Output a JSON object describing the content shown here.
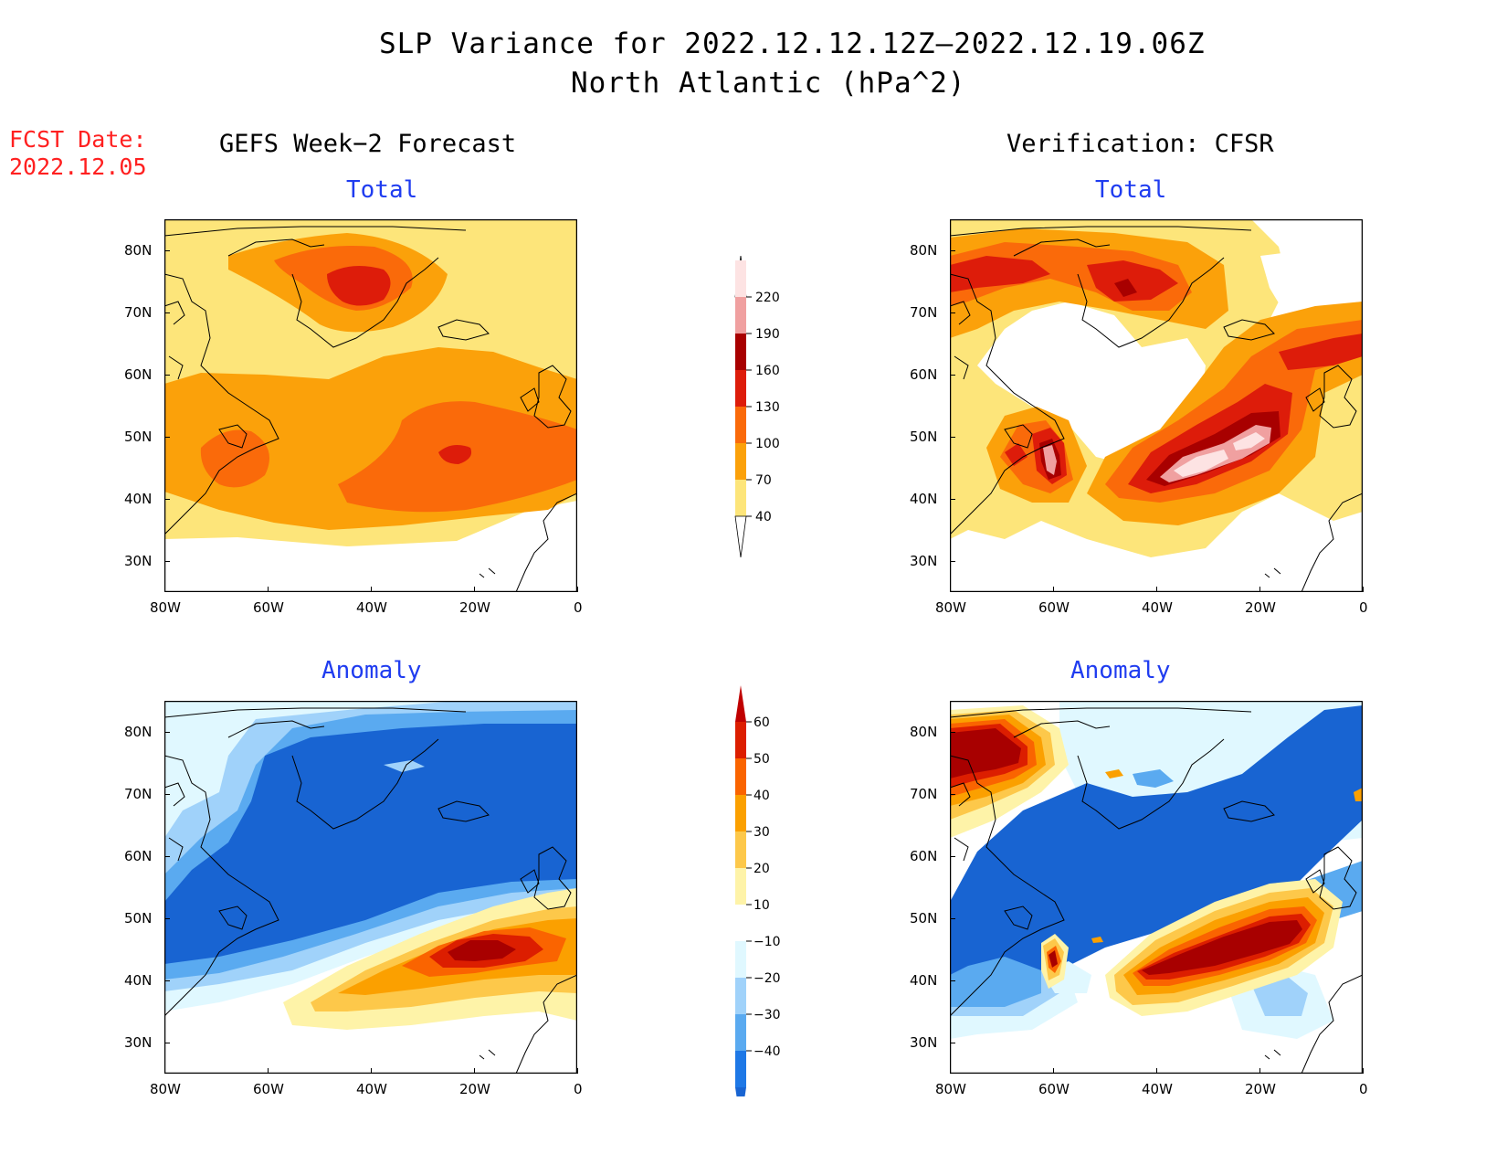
{
  "title_line1": "SLP Variance for 2022.12.12.12Z–2022.12.19.06Z",
  "title_line2": "North Atlantic (hPa^2)",
  "fcst_label": "FCST Date:",
  "fcst_date": "2022.12.05",
  "left_header": "GEFS Week−2 Forecast",
  "right_header": "Verification: CFSR",
  "panels": [
    {
      "id": "gefs-total",
      "title": "Total"
    },
    {
      "id": "cfsr-total",
      "title": "Total"
    },
    {
      "id": "gefs-anomaly",
      "title": "Anomaly"
    },
    {
      "id": "cfsr-anomaly",
      "title": "Anomaly"
    }
  ],
  "axes": {
    "x_ticks": [
      "80W",
      "60W",
      "40W",
      "20W",
      "0"
    ],
    "y_ticks": [
      "80N",
      "70N",
      "60N",
      "50N",
      "40N",
      "30N"
    ],
    "lon_range": [
      -80,
      0
    ],
    "lat_range": [
      25,
      85
    ]
  },
  "total_colorbar": {
    "labels": [
      "220",
      "190",
      "160",
      "130",
      "100",
      "70",
      "40"
    ],
    "colors": [
      "#fde3e3",
      "#f0a0a0",
      "#a80000",
      "#dd1c0a",
      "#fa6a0a",
      "#fba10a",
      "#fde57a"
    ],
    "bottom_color": "#ffffff"
  },
  "anomaly_colorbar": {
    "labels": [
      "60",
      "50",
      "40",
      "30",
      "20",
      "10",
      "−10",
      "−20",
      "−30",
      "−40"
    ],
    "colors": [
      "#c00000",
      "#dc1e00",
      "#fa6400",
      "#fba000",
      "#fdc84a",
      "#fef3a8",
      "#ffffff",
      "#e0f8ff",
      "#a0d2fa",
      "#5aaaf0",
      "#1e78e6",
      "#1864d2"
    ]
  },
  "palette": {
    "t40": "#fde57a",
    "t70": "#fba10a",
    "t100": "#fa6a0a",
    "t130": "#dd1c0a",
    "t160": "#a80000",
    "t190": "#f0a0a0",
    "t220": "#fde3e3",
    "a_neg40": "#1864d2",
    "a_neg30": "#5aaaf0",
    "a_neg20": "#a0d2fa",
    "a_neg10": "#e0f8ff",
    "a10": "#fef3a8",
    "a20": "#fdc84a",
    "a30": "#fba000",
    "a40": "#fa6400",
    "a50": "#dc1e00",
    "a60": "#a80000"
  }
}
